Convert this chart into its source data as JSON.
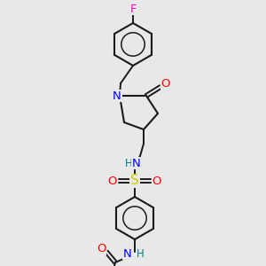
{
  "bg_color": "#e8e8e8",
  "colors": {
    "F": "#ff00cc",
    "O": "#ff0000",
    "N": "#0000ff",
    "S": "#cccc00",
    "HN": "#008080",
    "bond": "#1a1a1a"
  },
  "figsize": [
    3.0,
    3.0
  ],
  "dpi": 100
}
